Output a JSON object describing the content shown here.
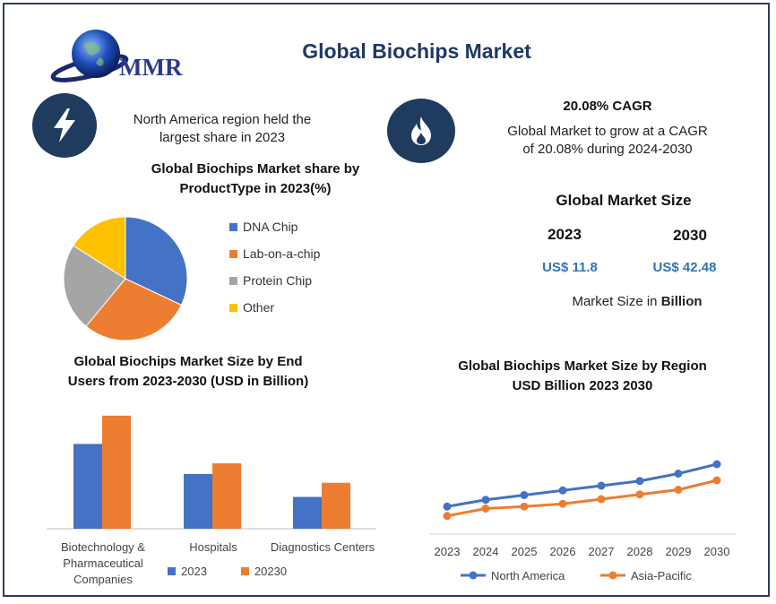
{
  "header": {
    "title": "Global Biochips Market",
    "logo_text": "MMR"
  },
  "highlight_left": {
    "icon": "lightning-icon",
    "text_line1": "North America region held the",
    "text_line2": "largest share in 2023"
  },
  "highlight_right": {
    "icon": "flame-icon",
    "headline": "20.08% CAGR",
    "text_line1": "Global Market to grow at a CAGR",
    "text_line2": "of 20.08% during 2024-2030"
  },
  "market_size": {
    "title": "Global Market Size",
    "year1": "2023",
    "value1": "US$ 11.8",
    "year2": "2030",
    "value2": "US$ 42.48",
    "note_prefix": "Market Size in",
    "note_bold": "Billion"
  },
  "colors": {
    "blue": "#4472c4",
    "orange": "#ed7d31",
    "gray": "#a5a5a5",
    "yellow": "#ffc000",
    "navy": "#1f3864"
  },
  "chart_data": [
    {
      "type": "pie",
      "title_line1": "Global Biochips Market share by",
      "title_line2": "ProductType in 2023(%)",
      "labels": [
        "DNA Chip",
        "Lab-on-a-chip",
        "Protein Chip",
        "Other"
      ],
      "values": [
        32,
        29,
        23,
        16
      ]
    },
    {
      "type": "bar",
      "title_line1": "Global Biochips Market Size by End",
      "title_line2": "Users from 2023-2030  (USD in Billion)",
      "categories": [
        "Biotechnology & Pharmaceutical Companies",
        "Hospitals",
        "Diagnostics Centers"
      ],
      "series": [
        {
          "name": "2023",
          "values": [
            4.8,
            3.1,
            1.8
          ]
        },
        {
          "name": "20230",
          "values": [
            6.4,
            3.7,
            2.6
          ]
        }
      ],
      "ylim": [
        0,
        7
      ]
    },
    {
      "type": "line",
      "title_line1": "Global Biochips Market Size by Region",
      "title_line2": "USD Billion  2023  2030",
      "x": [
        "2023",
        "2024",
        "2025",
        "2026",
        "2027",
        "2028",
        "2029",
        "2030"
      ],
      "series": [
        {
          "name": "North America",
          "values": [
            4.1,
            5.1,
            5.8,
            6.5,
            7.2,
            7.9,
            9.0,
            10.4
          ]
        },
        {
          "name": "Asia-Pacific",
          "values": [
            2.7,
            3.8,
            4.1,
            4.5,
            5.2,
            5.9,
            6.6,
            8.0
          ]
        }
      ],
      "ylim": [
        0,
        12
      ]
    }
  ]
}
